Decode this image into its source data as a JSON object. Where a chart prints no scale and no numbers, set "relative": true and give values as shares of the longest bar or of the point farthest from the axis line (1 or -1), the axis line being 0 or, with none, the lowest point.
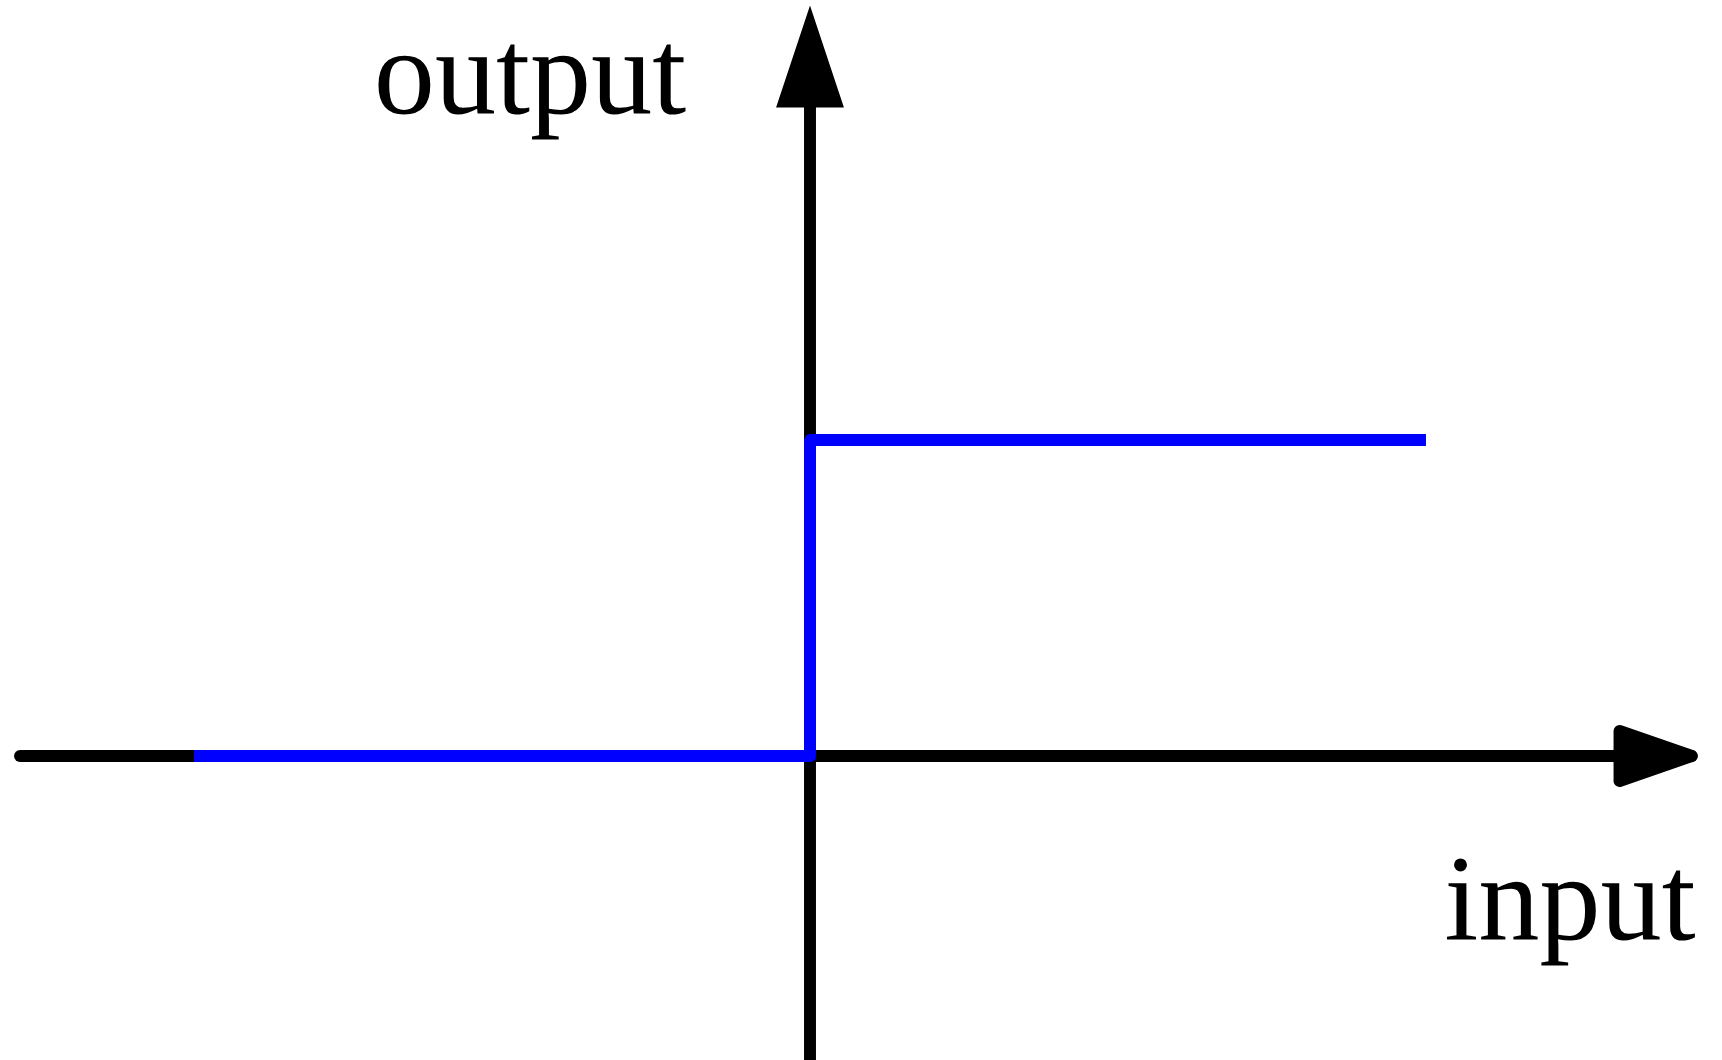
{
  "chart_data": {
    "type": "step",
    "relative": true,
    "xlabel": "input",
    "ylabel": "output",
    "categories": [
      null,
      null,
      null
    ],
    "series": [
      {
        "color": "#0000ff",
        "values": [
          0,
          1,
          1
        ]
      }
    ]
  }
}
